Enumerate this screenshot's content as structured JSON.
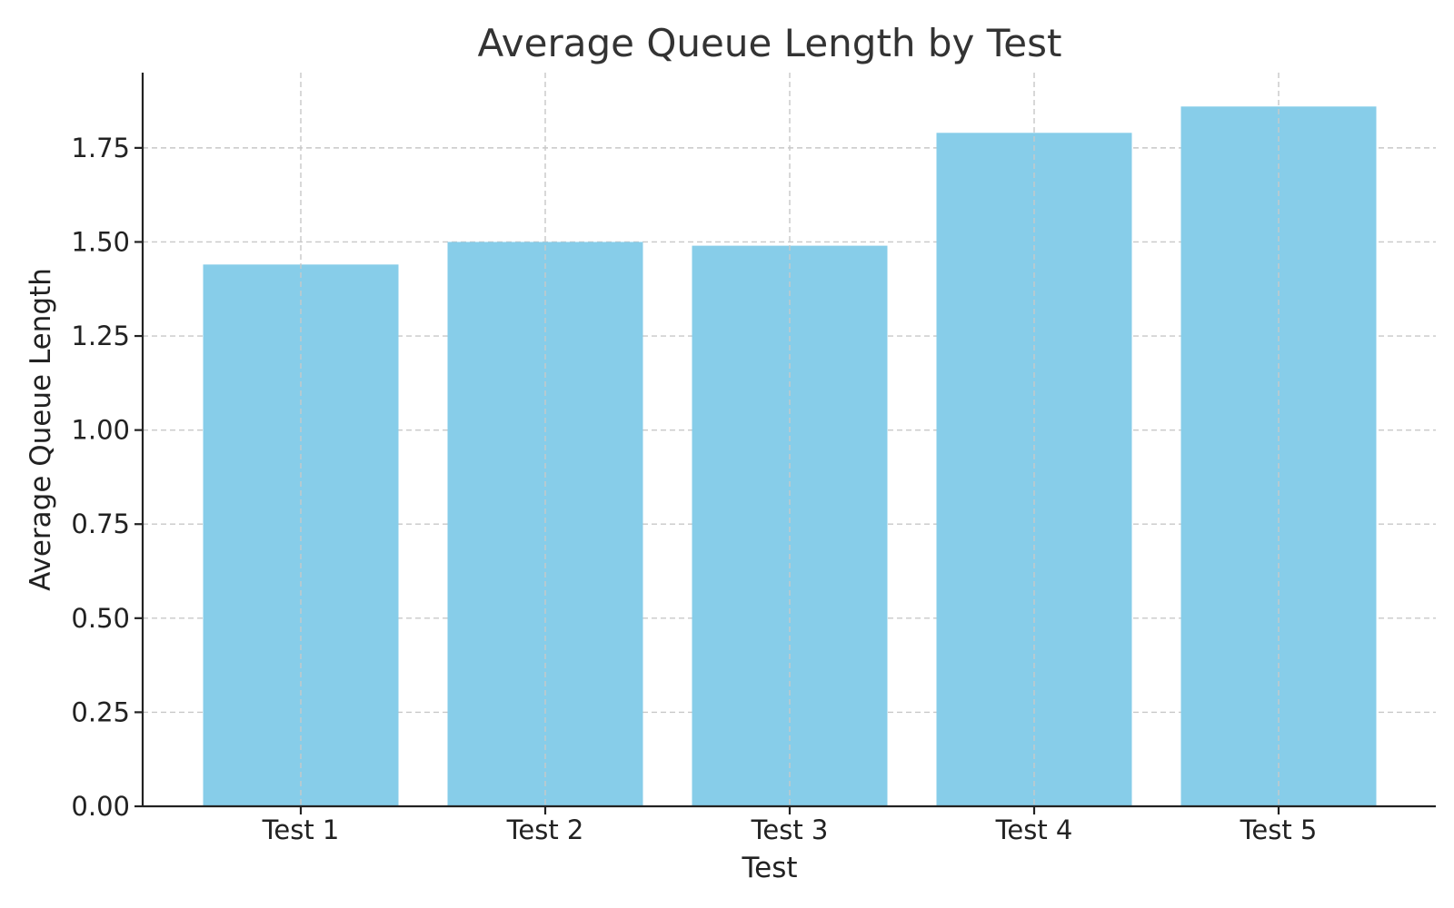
{
  "chart_data": {
    "type": "bar",
    "title": "Average Queue Length by Test",
    "xlabel": "Test",
    "ylabel": "Average Queue Length",
    "categories": [
      "Test 1",
      "Test 2",
      "Test 3",
      "Test 4",
      "Test 5"
    ],
    "values": [
      1.44,
      1.5,
      1.49,
      1.79,
      1.86
    ],
    "ylim": [
      0,
      1.95
    ],
    "yticks": [
      "0.00",
      "0.25",
      "0.50",
      "0.75",
      "1.00",
      "1.25",
      "1.50",
      "1.75"
    ],
    "grid": true,
    "bar_color": "#87CDE9",
    "axis_color": "#222222",
    "grid_color": "#c8c8c8"
  }
}
